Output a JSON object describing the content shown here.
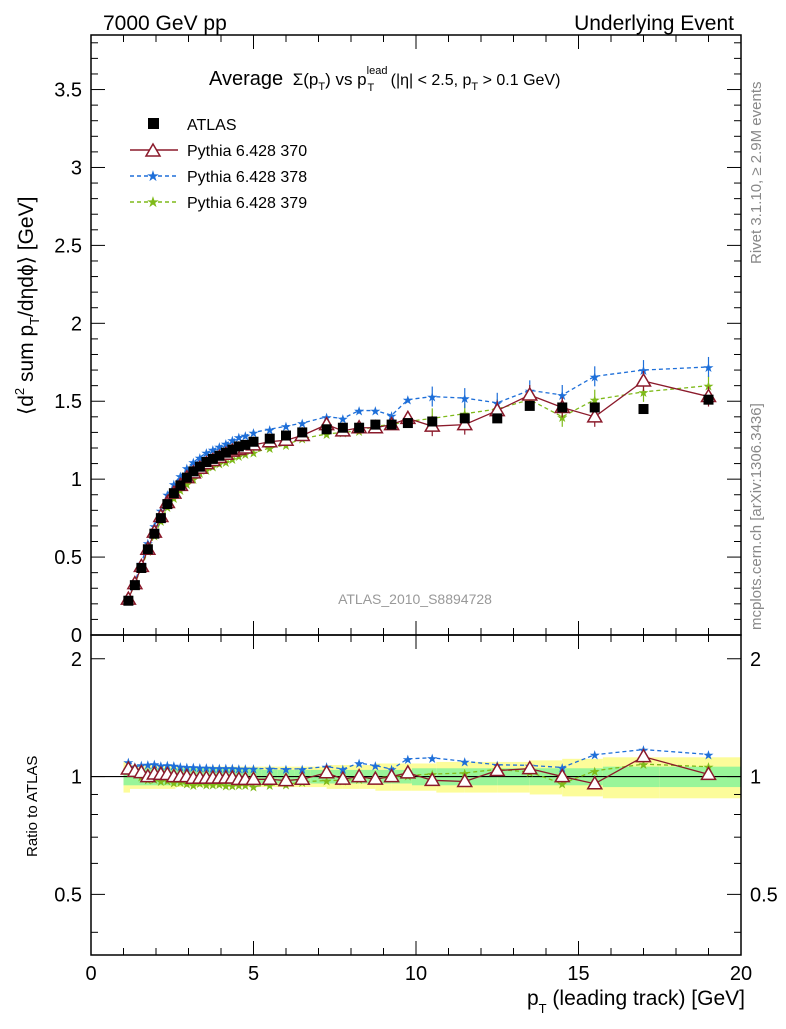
{
  "header": {
    "left": "7000 GeV pp",
    "right": "Underlying Event",
    "analysis": "ATLAS_2010_S8894728",
    "side_rivet": "Rivet 3.1.10, ≥ 2.9M events",
    "side_mcplots": "mcplots.cern.ch [arXiv:1306.3436]"
  },
  "title": {
    "average": "Average",
    "sigma": "Σ(p",
    "T": "T",
    "close": ")",
    "vs": " vs p",
    "lead": "lead",
    "T2": "T",
    "cut": " (|η| < 2.5, p",
    "T3": "T",
    "cut2": " > 0.1 GeV)"
  },
  "axes": {
    "ylabel_main": {
      "a": "⟨d",
      "sup": "2",
      "b": " sum p",
      "sub": "T",
      "c": "/dηdϕ⟩ [GeV]"
    },
    "ylabel_ratio": "Ratio to ATLAS",
    "xlabel": {
      "p": "p",
      "sub": "T",
      "rest": " (leading track) [GeV]"
    },
    "x_ticks": [
      "0",
      "5",
      "10",
      "15",
      "20"
    ],
    "y_ticks_main": [
      "0",
      "0.5",
      "1",
      "1.5",
      "2",
      "2.5",
      "3",
      "3.5"
    ],
    "y_ticks_ratio": [
      "0.5",
      "1",
      "2"
    ]
  },
  "legend": {
    "atlas": "ATLAS",
    "p370": "Pythia 6.428 370",
    "p378": "Pythia 6.428 378",
    "p379": "Pythia 6.428 379"
  },
  "colors": {
    "atlas": "#000000",
    "p370": "#8b1a2b",
    "p378": "#1e6fd9",
    "p379": "#7fba1a",
    "band_outer": "#fcfc9a",
    "band_inner": "#99f599"
  },
  "chart_data": {
    "type": "scatter",
    "x_range": [
      0,
      20
    ],
    "y_range_main": [
      0,
      3.85
    ],
    "ratio_scale": "log",
    "ratio_range": [
      0.35,
      2.3
    ],
    "x": [
      1.1,
      1.3,
      1.5,
      1.7,
      1.9,
      2.1,
      2.3,
      2.5,
      2.7,
      2.9,
      3.1,
      3.3,
      3.5,
      3.7,
      3.9,
      4.1,
      4.3,
      4.5,
      4.7,
      5.0,
      5.5,
      6.0,
      6.5,
      7.0,
      7.5,
      8.0,
      8.5,
      9.0,
      9.5,
      10.25,
      11.0,
      12.0,
      13.0,
      14.0,
      15.0,
      16.5,
      18.5
    ],
    "x_bar": [
      1.15,
      1.35,
      1.55,
      1.75,
      1.95,
      2.15,
      2.35,
      2.55,
      2.75,
      2.95,
      3.15,
      3.35,
      3.55,
      3.75,
      3.95,
      4.15,
      4.35,
      4.55,
      4.75,
      5.0,
      5.5,
      6.0,
      6.5,
      7.25,
      7.75,
      8.25,
      8.75,
      9.25,
      9.75,
      10.5,
      11.5,
      12.5,
      13.5,
      14.5,
      15.5,
      17.0,
      19.0
    ],
    "series": [
      {
        "name": "ATLAS",
        "values": [
          0.22,
          0.32,
          0.43,
          0.55,
          0.65,
          0.75,
          0.84,
          0.91,
          0.96,
          1.01,
          1.05,
          1.08,
          1.11,
          1.13,
          1.15,
          1.17,
          1.19,
          1.21,
          1.22,
          1.24,
          1.26,
          1.28,
          1.3,
          1.32,
          1.33,
          1.33,
          1.35,
          1.35,
          1.36,
          1.37,
          1.39,
          1.39,
          1.47,
          1.46,
          1.46,
          1.45,
          1.51
        ],
        "band_inner": [
          0.05,
          0.05,
          0.05,
          0.05,
          0.05,
          0.05,
          0.05,
          0.05,
          0.05,
          0.05,
          0.05,
          0.05,
          0.05,
          0.05,
          0.05,
          0.05,
          0.05,
          0.05,
          0.05,
          0.05,
          0.04,
          0.04,
          0.04,
          0.04,
          0.04,
          0.04,
          0.04,
          0.04,
          0.04,
          0.05,
          0.05,
          0.05,
          0.05,
          0.05,
          0.05,
          0.06,
          0.06
        ],
        "band_outer": [
          0.09,
          0.07,
          0.07,
          0.07,
          0.07,
          0.07,
          0.07,
          0.07,
          0.06,
          0.06,
          0.06,
          0.06,
          0.06,
          0.06,
          0.06,
          0.06,
          0.06,
          0.06,
          0.06,
          0.06,
          0.06,
          0.06,
          0.06,
          0.06,
          0.07,
          0.07,
          0.07,
          0.08,
          0.08,
          0.08,
          0.09,
          0.09,
          0.09,
          0.1,
          0.11,
          0.12,
          0.12
        ]
      },
      {
        "name": "Pythia 6.428 370",
        "values": [
          0.23,
          0.33,
          0.44,
          0.55,
          0.66,
          0.76,
          0.85,
          0.91,
          0.96,
          1.01,
          1.04,
          1.07,
          1.1,
          1.12,
          1.14,
          1.16,
          1.18,
          1.19,
          1.2,
          1.22,
          1.24,
          1.25,
          1.28,
          1.35,
          1.31,
          1.33,
          1.33,
          1.35,
          1.39,
          1.34,
          1.35,
          1.44,
          1.54,
          1.46,
          1.4,
          1.63,
          1.53
        ]
      },
      {
        "name": "Pythia 6.428 378",
        "values": [
          0.24,
          0.34,
          0.46,
          0.59,
          0.7,
          0.8,
          0.9,
          0.97,
          1.02,
          1.07,
          1.11,
          1.14,
          1.17,
          1.19,
          1.21,
          1.23,
          1.25,
          1.27,
          1.28,
          1.3,
          1.32,
          1.34,
          1.36,
          1.4,
          1.39,
          1.44,
          1.44,
          1.41,
          1.51,
          1.53,
          1.52,
          1.49,
          1.57,
          1.54,
          1.66,
          1.7,
          1.72
        ]
      },
      {
        "name": "Pythia 6.428 379",
        "values": [
          0.23,
          0.33,
          0.43,
          0.54,
          0.64,
          0.73,
          0.82,
          0.88,
          0.93,
          0.97,
          1.0,
          1.04,
          1.06,
          1.08,
          1.1,
          1.11,
          1.13,
          1.15,
          1.16,
          1.17,
          1.2,
          1.22,
          1.26,
          1.29,
          1.3,
          1.31,
          1.34,
          1.35,
          1.37,
          1.39,
          1.42,
          1.45,
          1.51,
          1.4,
          1.51,
          1.56,
          1.6
        ]
      }
    ]
  }
}
